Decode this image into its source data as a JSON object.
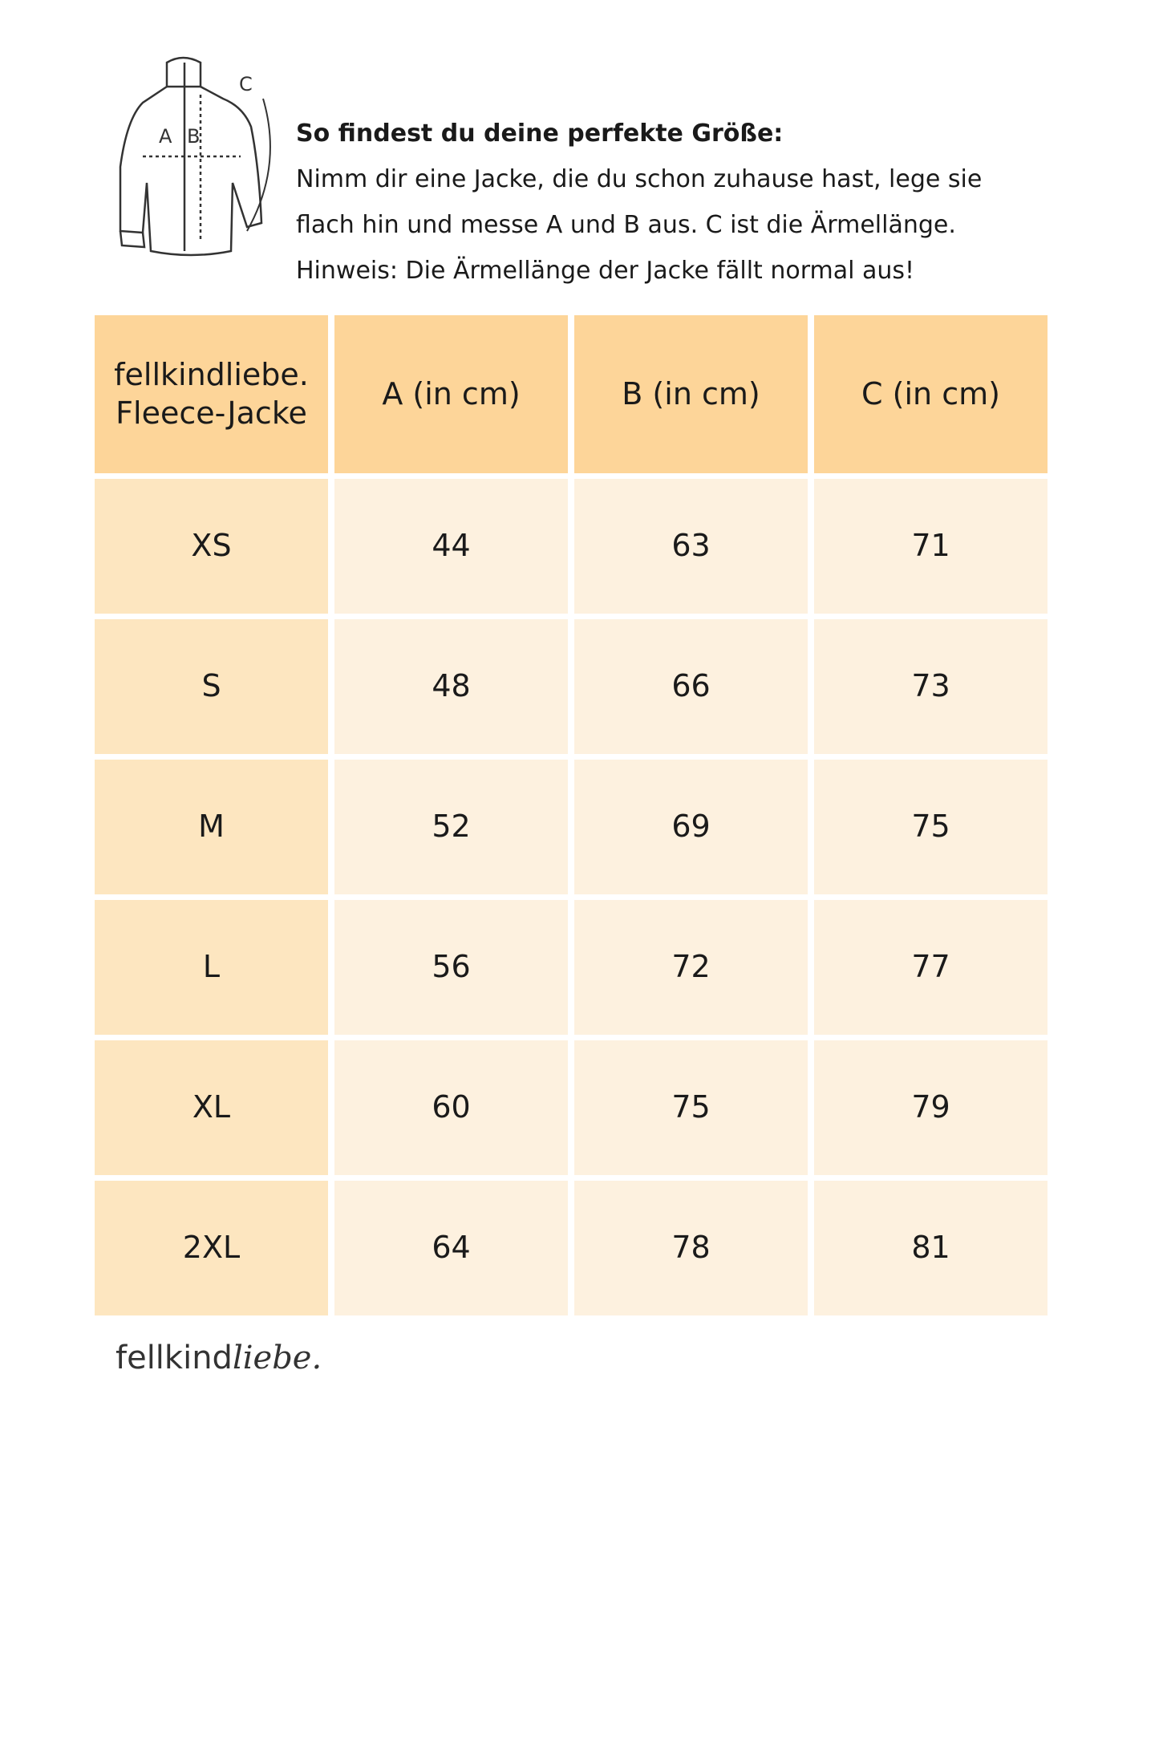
{
  "illustration": {
    "labels": [
      "A",
      "B",
      "C"
    ]
  },
  "intro": {
    "title": "So findest du deine perfekte Größe:",
    "lines": [
      "Nimm dir eine Jacke, die du schon zuhause hast, lege sie",
      "flach hin und messe A und B aus. C ist die Ärmellänge.",
      "Hinweis: Die Ärmellänge der Jacke fällt normal aus!"
    ]
  },
  "table": {
    "header": [
      "fellkindliebe. Fleece-Jacke",
      "A (in cm)",
      "B (in cm)",
      "C (in cm)"
    ],
    "rows": [
      [
        "XS",
        "44",
        "63",
        "71"
      ],
      [
        "S",
        "48",
        "66",
        "73"
      ],
      [
        "M",
        "52",
        "69",
        "75"
      ],
      [
        "L",
        "56",
        "72",
        "77"
      ],
      [
        "XL",
        "60",
        "75",
        "79"
      ],
      [
        "2XL",
        "64",
        "78",
        "81"
      ]
    ]
  },
  "logo": {
    "main": "fellkind",
    "script": "liebe."
  }
}
